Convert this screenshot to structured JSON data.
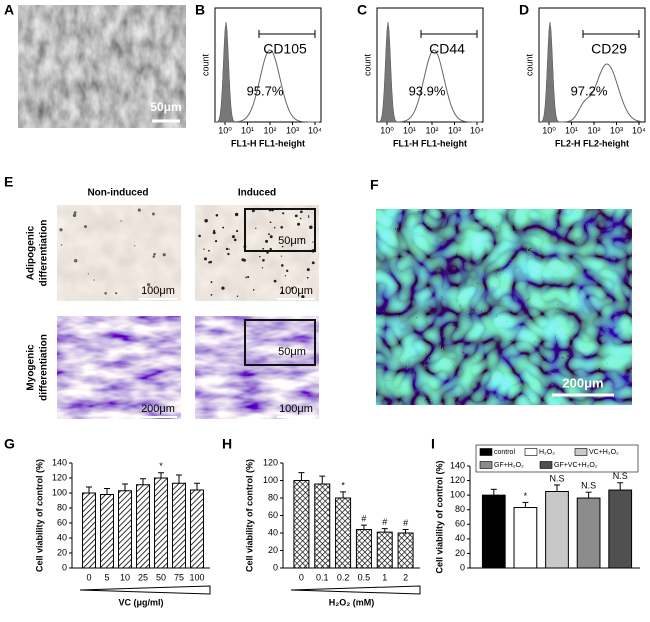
{
  "panels": {
    "A": {
      "label": "A",
      "scale_bar": "50μm"
    },
    "B": {
      "label": "B",
      "marker": "CD105",
      "percent": "95.7%",
      "x_label": "FL1-H FL1-height",
      "y_label": "count",
      "x_ticks": [
        "10⁰",
        "10¹",
        "10²",
        "10³",
        "10⁴"
      ]
    },
    "C": {
      "label": "C",
      "marker": "CD44",
      "percent": "93.9%",
      "x_label": "FL1-H FL1-height",
      "y_label": "count",
      "x_ticks": [
        "10⁰",
        "10¹",
        "10²",
        "10³",
        "10⁴"
      ]
    },
    "D": {
      "label": "D",
      "marker": "CD29",
      "percent": "97.2%",
      "x_label": "FL2-H FL2-height",
      "y_label": "count",
      "x_ticks": [
        "10⁰",
        "10¹",
        "10²",
        "10³",
        "10⁴"
      ]
    },
    "E": {
      "label": "E",
      "columns": [
        "Non-induced",
        "Induced"
      ],
      "rows": [
        [
          "Adipogenic",
          "differentiation"
        ],
        [
          "Myogenic",
          "differentiation"
        ]
      ],
      "scale_bars": [
        [
          "100μm",
          "100μm"
        ],
        [
          "200μm",
          "100μm"
        ]
      ],
      "inset_scale_bars": [
        "50μm",
        "50μm"
      ]
    },
    "F": {
      "label": "F",
      "scale_bar": "200μm"
    }
  },
  "chart_data": [
    {
      "type": "bar",
      "panel_label": "G",
      "y_label": "Cell viability of control (%)",
      "x_label": "VC (μg/ml)",
      "categories": [
        "0",
        "5",
        "10",
        "25",
        "50",
        "75",
        "100"
      ],
      "values": [
        100,
        98,
        103,
        111,
        120,
        113,
        104
      ],
      "errors": [
        8,
        8,
        9,
        8,
        7,
        11,
        9
      ],
      "annotations": [
        null,
        null,
        null,
        null,
        "*",
        null,
        null
      ],
      "color": "#000000",
      "pattern": "diagonal",
      "ylim": [
        0,
        140
      ],
      "yticks": [
        0,
        20,
        40,
        60,
        80,
        100,
        120,
        140
      ]
    },
    {
      "type": "bar",
      "panel_label": "H",
      "y_label": "Cell viability of control (%)",
      "x_label": "H₂O₂ (mM)",
      "categories": [
        "0",
        "0.1",
        "0.2",
        "0.5",
        "1",
        "2"
      ],
      "values": [
        100,
        96,
        80,
        44,
        41,
        40
      ],
      "errors": [
        9,
        9,
        7,
        5,
        4,
        4
      ],
      "annotations": [
        null,
        null,
        "*",
        "#",
        "#",
        "#"
      ],
      "color": "#000000",
      "pattern": "crosshatch",
      "ylim": [
        0,
        120
      ],
      "yticks": [
        0,
        20,
        40,
        60,
        80,
        100,
        120
      ]
    },
    {
      "type": "bar",
      "panel_label": "I",
      "y_label": "Cell viability of control (%)",
      "series": [
        {
          "name": "control",
          "color": "#000000",
          "values": [
            100
          ],
          "errors": [
            8
          ],
          "annotations": [
            null
          ]
        },
        {
          "name": "H₂O₂",
          "color": "#ffffff",
          "values": [
            83
          ],
          "errors": [
            7
          ],
          "annotations": [
            "*"
          ]
        },
        {
          "name": "VC+H₂O₂",
          "color": "#c8c8c8",
          "values": [
            105
          ],
          "errors": [
            9
          ],
          "annotations": [
            "N.S"
          ]
        },
        {
          "name": "GF+H₂O₂",
          "color": "#8c8c8c",
          "values": [
            96
          ],
          "errors": [
            8
          ],
          "annotations": [
            "N.S"
          ]
        },
        {
          "name": "GF+VC+H₂O₂",
          "color": "#505050",
          "values": [
            107
          ],
          "errors": [
            10
          ],
          "annotations": [
            "N.S"
          ]
        }
      ],
      "ylim": [
        0,
        140
      ],
      "yticks": [
        0,
        20,
        40,
        60,
        80,
        100,
        120,
        140
      ]
    }
  ]
}
